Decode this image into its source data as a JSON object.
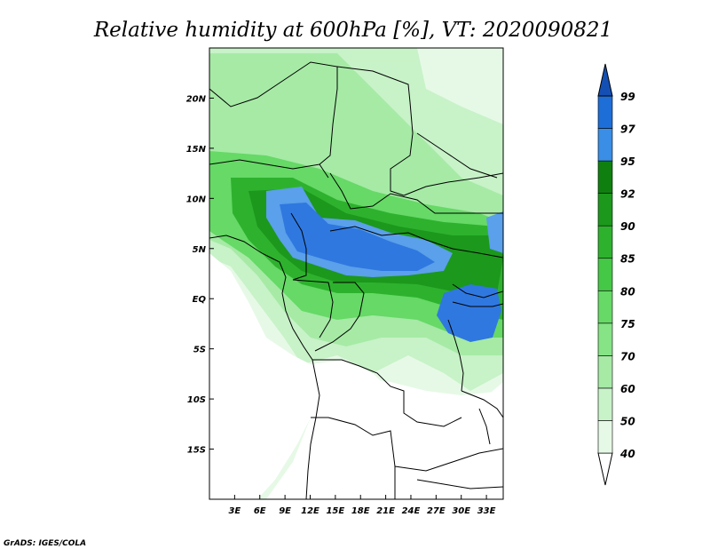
{
  "title": "Relative humidity at 600hPa [%], VT: 2020090821",
  "credit": "GrADS: IGES/COLA",
  "map": {
    "lon_range": [
      0,
      35
    ],
    "lat_range": [
      -20,
      25
    ],
    "x_ticks": [
      {
        "lon": 3,
        "label": "3E"
      },
      {
        "lon": 6,
        "label": "6E"
      },
      {
        "lon": 9,
        "label": "9E"
      },
      {
        "lon": 12,
        "label": "12E"
      },
      {
        "lon": 15,
        "label": "15E"
      },
      {
        "lon": 18,
        "label": "18E"
      },
      {
        "lon": 21,
        "label": "21E"
      },
      {
        "lon": 24,
        "label": "24E"
      },
      {
        "lon": 27,
        "label": "27E"
      },
      {
        "lon": 30,
        "label": "30E"
      },
      {
        "lon": 33,
        "label": "33E"
      }
    ],
    "y_ticks": [
      {
        "lat": 20,
        "label": "20N"
      },
      {
        "lat": 15,
        "label": "15N"
      },
      {
        "lat": 10,
        "label": "10N"
      },
      {
        "lat": 5,
        "label": "5N"
      },
      {
        "lat": 0,
        "label": "EQ"
      },
      {
        "lat": -5,
        "label": "5S"
      },
      {
        "lat": -10,
        "label": "10S"
      },
      {
        "lat": -15,
        "label": "15S"
      }
    ]
  },
  "colorbar": {
    "levels": [
      "40",
      "50",
      "60",
      "70",
      "75",
      "80",
      "85",
      "90",
      "92",
      "95",
      "97",
      "99"
    ],
    "colors": [
      "#ffffff",
      "#e6f9e6",
      "#c8f2c8",
      "#a6eaa6",
      "#86e386",
      "#66d966",
      "#45c845",
      "#2eb22e",
      "#1c981c",
      "#0f800f",
      "#3a8ee6",
      "#1e6ed8",
      "#1450b4"
    ]
  },
  "colors": {
    "wet_blue": "#2f78e0",
    "light_blue": "#5aa0ea",
    "border": "#000000"
  }
}
